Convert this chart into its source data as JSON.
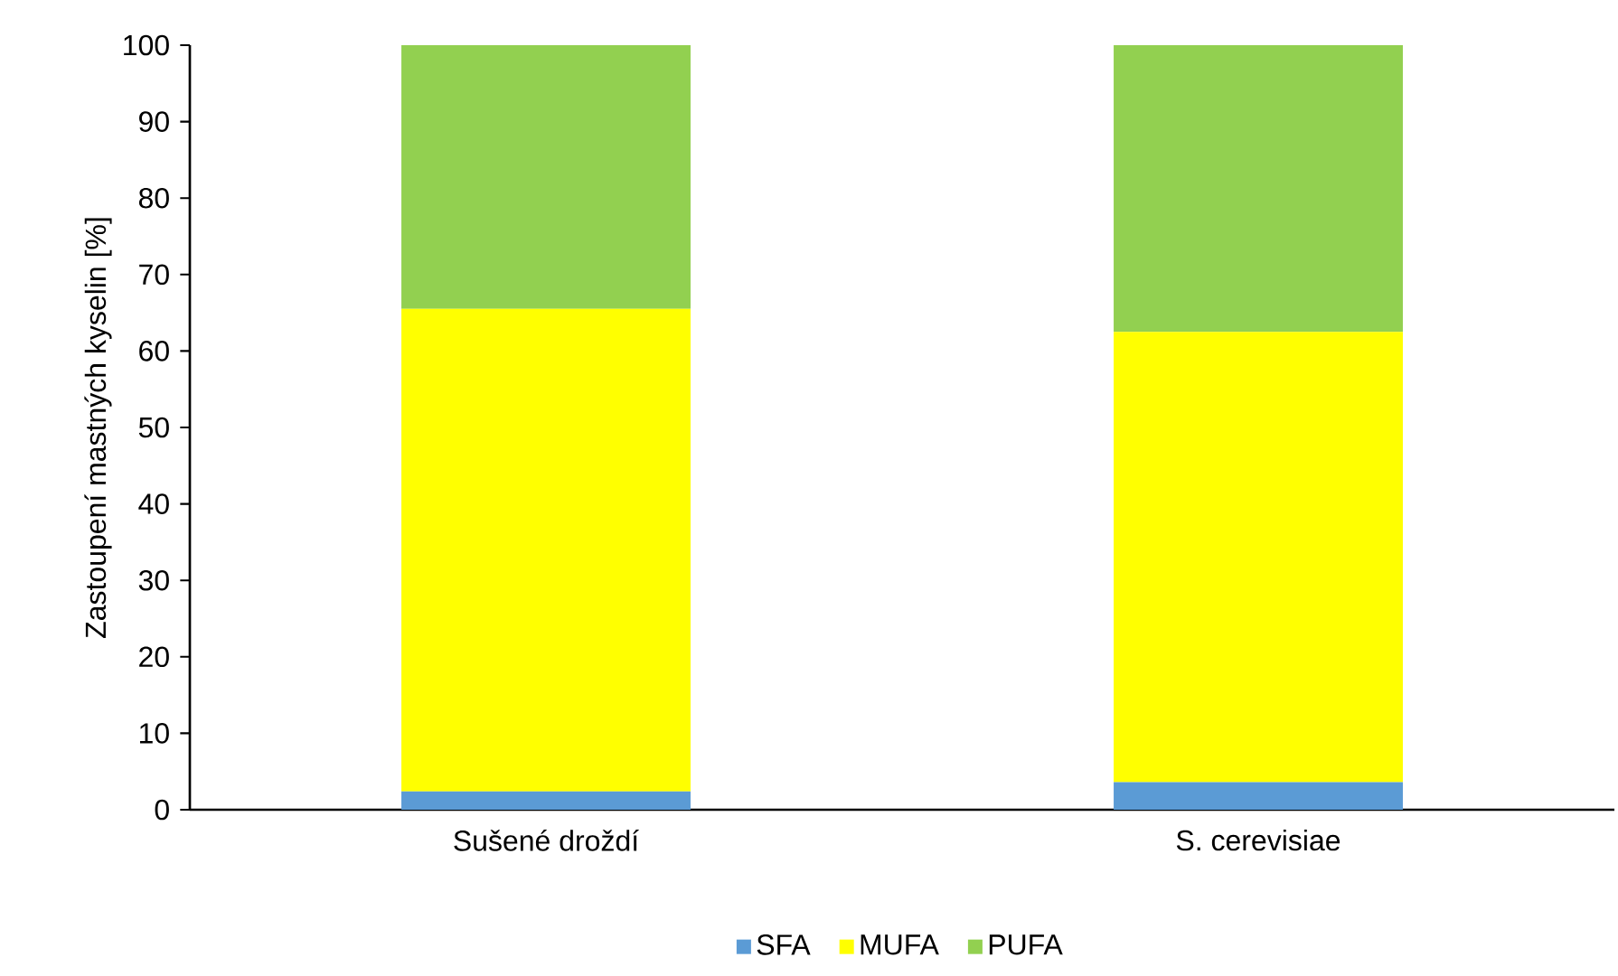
{
  "chart_data": {
    "type": "bar",
    "stacked": true,
    "ylabel": "Zastoupení mastných kyselin [%]",
    "categories": [
      "Sušené droždí",
      "S. cerevisiae"
    ],
    "series": [
      {
        "name": "SFA",
        "color": "#5b9bd5",
        "values": [
          2.4,
          3.6
        ]
      },
      {
        "name": "MUFA",
        "color": "#ffff00",
        "values": [
          63.1,
          58.9
        ]
      },
      {
        "name": "PUFA",
        "color": "#92d050",
        "values": [
          34.5,
          37.5
        ]
      }
    ],
    "ylim": [
      0,
      100
    ],
    "yticks": [
      0,
      10,
      20,
      30,
      40,
      50,
      60,
      70,
      80,
      90,
      100
    ],
    "grid": false,
    "legend": "bottom"
  }
}
